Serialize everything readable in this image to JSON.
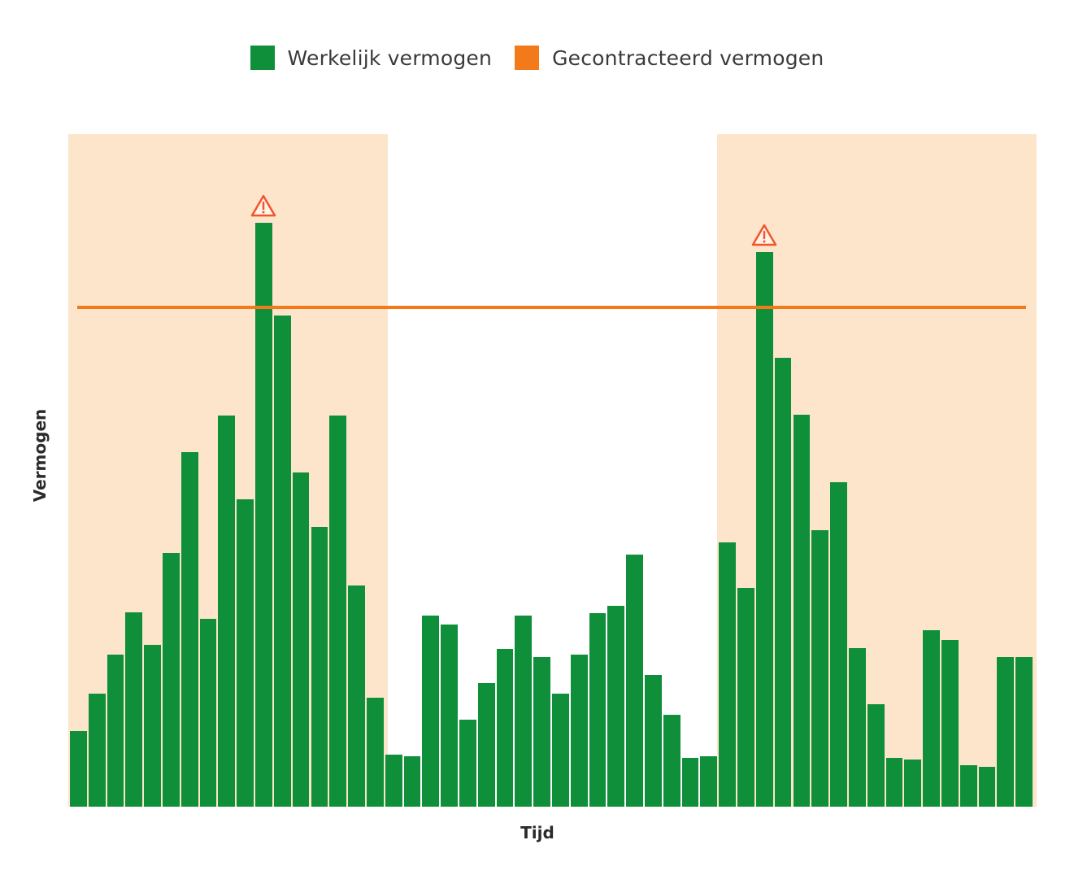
{
  "legend": {
    "items": [
      {
        "label": "Werkelijk vermogen",
        "color": "#0f8f3a"
      },
      {
        "label": "Gecontracteerd vermogen",
        "color": "#f27a1a"
      }
    ]
  },
  "axes": {
    "xlabel": "Tijd",
    "ylabel": "Vermogen"
  },
  "colors": {
    "bar": "#0f8f3a",
    "contract_line": "#f27a1a",
    "peak_region": "#fde5cc",
    "warning": "#f2552a"
  },
  "chart_data": {
    "type": "bar",
    "title": "",
    "xlabel": "Tijd",
    "ylabel": "Vermogen",
    "grid": false,
    "legend_position": "top",
    "ylim": [
      0,
      100
    ],
    "x": [
      1,
      2,
      3,
      4,
      5,
      6,
      7,
      8,
      9,
      10,
      11,
      12,
      13,
      14,
      15,
      16,
      17,
      18,
      19,
      20,
      21,
      22,
      23,
      24,
      25,
      26,
      27,
      28,
      29,
      30,
      31,
      32,
      33,
      34,
      35,
      36,
      37,
      38,
      39,
      40,
      41,
      42,
      43,
      44,
      45,
      46,
      47,
      48,
      49,
      50,
      51,
      52
    ],
    "series": [
      {
        "name": "Werkelijk vermogen",
        "type": "bar",
        "values": [
          11.2,
          16.8,
          22.6,
          28.9,
          24.1,
          37.7,
          52.7,
          27.9,
          58.2,
          45.7,
          86.8,
          73.0,
          49.7,
          41.6,
          58.2,
          32.9,
          16.2,
          7.7,
          7.5,
          28.4,
          27.1,
          12.9,
          18.4,
          23.5,
          28.4,
          22.2,
          16.8,
          22.6,
          28.8,
          29.9,
          37.5,
          19.6,
          13.7,
          7.3,
          7.5,
          39.3,
          32.5,
          82.5,
          66.7,
          58.3,
          41.1,
          48.3,
          23.6,
          15.2,
          7.3,
          7.0,
          26.2,
          24.8,
          6.2,
          5.9,
          22.3,
          22.3
        ]
      },
      {
        "name": "Gecontracteerd vermogen",
        "type": "line",
        "value": 74.2
      }
    ],
    "annotations": [
      {
        "type": "warning-icon",
        "bar_index": 11,
        "note": "exceeds contracted power"
      },
      {
        "type": "warning-icon",
        "bar_index": 38,
        "note": "exceeds contracted power"
      }
    ],
    "shaded_regions": [
      {
        "from_bar": 1,
        "to_bar": 17,
        "label": "peak period"
      },
      {
        "from_bar": 36,
        "to_bar": 52,
        "label": "peak period"
      }
    ]
  }
}
